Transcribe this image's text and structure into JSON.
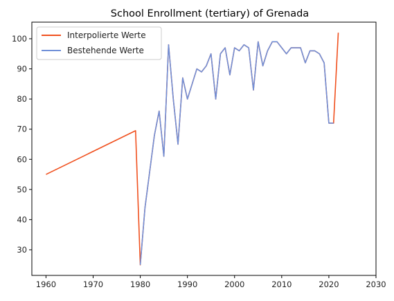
{
  "chart_data": {
    "type": "line",
    "title": "School Enrollment (tertiary) of Grenada",
    "xlabel": "",
    "ylabel": "",
    "xlim": [
      1957,
      2030
    ],
    "ylim": [
      21.5,
      105.5
    ],
    "x_ticks": [
      1960,
      1970,
      1980,
      1990,
      2000,
      2010,
      2020,
      2030
    ],
    "y_ticks": [
      30,
      40,
      50,
      60,
      70,
      80,
      90,
      100
    ],
    "grid": false,
    "legend_position": "top-left",
    "series": [
      {
        "name": "Interpolierte Werte",
        "color": "#f0501e",
        "x": [
          1960,
          1979,
          1980,
          1981,
          1982,
          1983,
          1984,
          1985,
          1986,
          1987,
          1988,
          1989,
          1990,
          1991,
          1992,
          1993,
          1994,
          1995,
          1996,
          1997,
          1998,
          1999,
          2000,
          2001,
          2002,
          2003,
          2004,
          2005,
          2006,
          2007,
          2008,
          2009,
          2010,
          2011,
          2012,
          2013,
          2014,
          2015,
          2016,
          2017,
          2018,
          2019,
          2020,
          2021,
          2022
        ],
        "values": [
          55,
          69.5,
          25,
          44,
          56,
          68,
          76,
          61,
          98,
          80,
          65,
          87,
          80,
          85,
          90,
          89,
          91,
          95,
          80,
          95,
          97,
          88,
          97,
          96,
          98,
          97,
          83,
          99,
          91,
          96,
          99,
          99,
          97,
          95,
          97,
          97,
          97,
          92,
          96,
          96,
          95,
          92,
          72,
          72,
          102
        ]
      },
      {
        "name": "Bestehende Werte",
        "color": "#7090d8",
        "x": [
          1980,
          1981,
          1982,
          1983,
          1984,
          1985,
          1986,
          1987,
          1988,
          1989,
          1990,
          1991,
          1992,
          1993,
          1994,
          1995,
          1996,
          1997,
          1998,
          1999,
          2000,
          2001,
          2002,
          2003,
          2004,
          2005,
          2006,
          2007,
          2008,
          2009,
          2010,
          2011,
          2012,
          2013,
          2014,
          2015,
          2016,
          2017,
          2018,
          2019,
          2020,
          2021
        ],
        "values": [
          25,
          44,
          56,
          68,
          76,
          61,
          98,
          80,
          65,
          87,
          80,
          85,
          90,
          89,
          91,
          95,
          80,
          95,
          97,
          88,
          97,
          96,
          98,
          97,
          83,
          99,
          91,
          96,
          99,
          99,
          97,
          95,
          97,
          97,
          97,
          92,
          96,
          96,
          95,
          92,
          72,
          72
        ]
      }
    ]
  }
}
